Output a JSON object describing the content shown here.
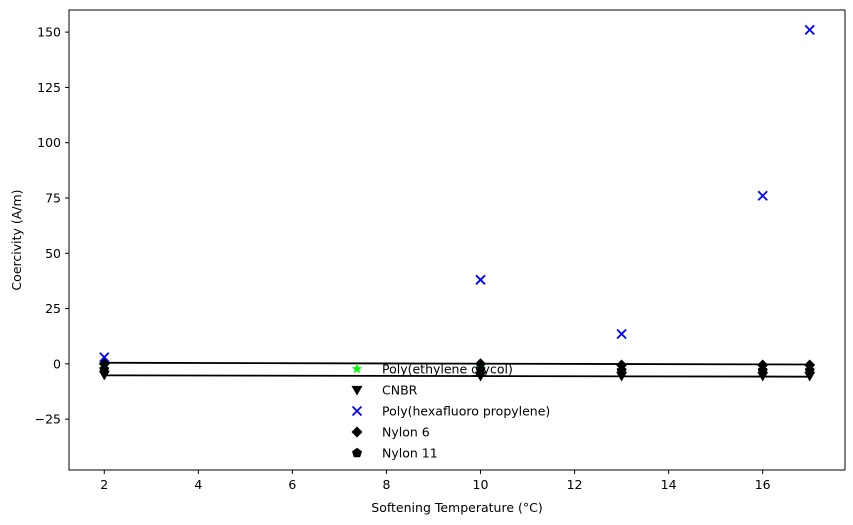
{
  "chart_data": {
    "type": "scatter",
    "xlabel": "Softening Temperature (°C)",
    "ylabel": "Coercivity (A/m)",
    "xlim": [
      1.25,
      17.75
    ],
    "ylim": [
      -48,
      160
    ],
    "xticks": [
      2,
      4,
      6,
      8,
      10,
      12,
      14,
      16
    ],
    "yticks": [
      -25,
      0,
      25,
      50,
      75,
      100,
      125,
      150
    ],
    "xtick_labels": [
      "2",
      "4",
      "6",
      "8",
      "10",
      "12",
      "14",
      "16"
    ],
    "ytick_labels": [
      "−25",
      "0",
      "25",
      "50",
      "75",
      "100",
      "125",
      "150"
    ],
    "grid": false,
    "legend_position": "lower-center",
    "series": [
      {
        "name": "Poly(ethylene glycol)",
        "marker": "star",
        "color": "#00ff00",
        "x": [
          2,
          10,
          13,
          16,
          17
        ],
        "y": [
          -1,
          -1.5,
          -1.5,
          -1.5,
          -1.5
        ]
      },
      {
        "name": "CNBR",
        "marker": "triangle-down",
        "color": "#000000",
        "x": [
          2,
          10,
          13,
          16,
          17
        ],
        "y": [
          -5,
          -5.5,
          -5.5,
          -5.5,
          -5.5
        ]
      },
      {
        "name": "Poly(hexafluoro propylene)",
        "marker": "x",
        "color": "#0000ff",
        "x": [
          2,
          10,
          13,
          16,
          17
        ],
        "y": [
          3,
          38,
          13.5,
          76,
          151
        ]
      },
      {
        "name": "Nylon 6",
        "marker": "diamond",
        "color": "#000000",
        "x": [
          2,
          10,
          13,
          16,
          17
        ],
        "y": [
          0,
          0,
          -0.5,
          -0.5,
          -0.5
        ]
      },
      {
        "name": "Nylon 11",
        "marker": "pentagon",
        "color": "#000000",
        "x": [
          2,
          10,
          13,
          16,
          17
        ],
        "y": [
          -2.5,
          -2.5,
          -3,
          -3,
          -3
        ]
      }
    ],
    "lines": [
      {
        "color": "#000000",
        "x": [
          2,
          17
        ],
        "y": [
          0.5,
          -0.3
        ]
      },
      {
        "color": "#000000",
        "x": [
          2,
          17
        ],
        "y": [
          -5.2,
          -5.8
        ]
      }
    ]
  }
}
